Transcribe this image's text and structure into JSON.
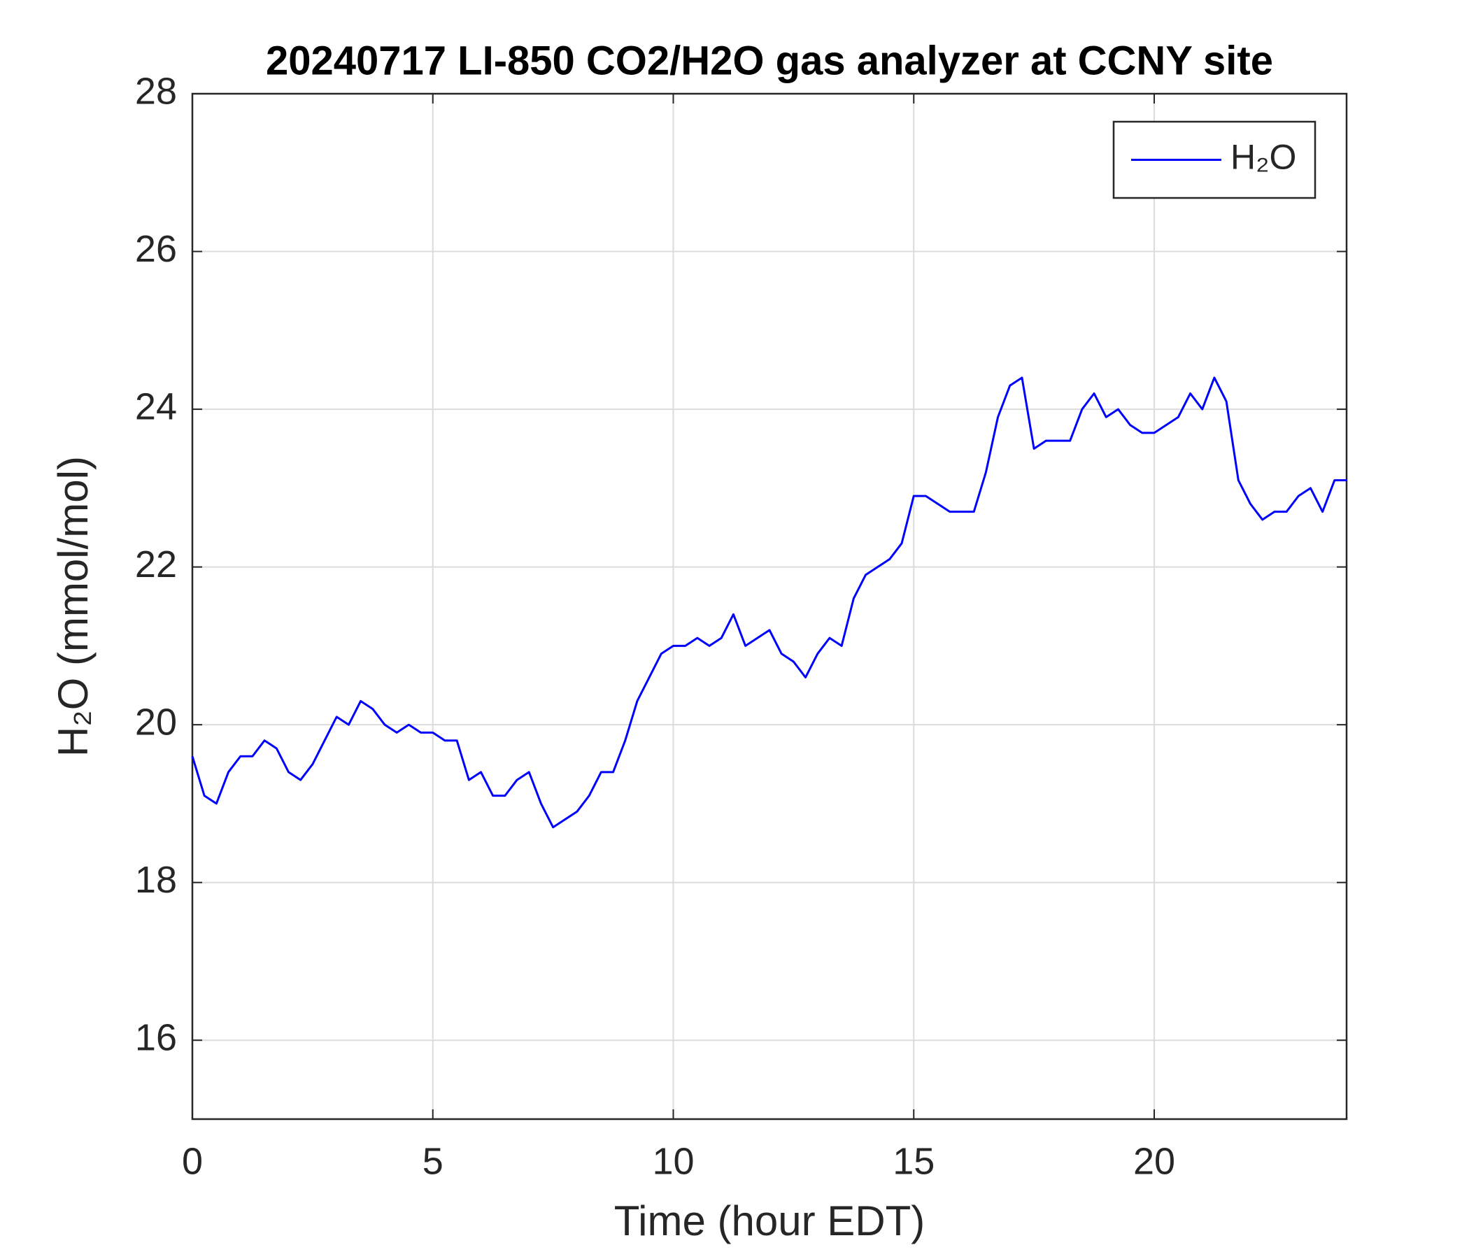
{
  "chart_data": {
    "type": "line",
    "title": "20240717 LI-850 CO2/H2O gas analyzer at CCNY site",
    "xlabel": "Time (hour EDT)",
    "ylabel": "H₂O (mmol/mol)",
    "x": [
      0,
      0.25,
      0.5,
      0.75,
      1,
      1.25,
      1.5,
      1.75,
      2,
      2.25,
      2.5,
      2.75,
      3,
      3.25,
      3.5,
      3.75,
      4,
      4.25,
      4.5,
      4.75,
      5,
      5.25,
      5.5,
      5.75,
      6,
      6.25,
      6.5,
      6.75,
      7,
      7.25,
      7.5,
      7.75,
      8,
      8.25,
      8.5,
      8.75,
      9,
      9.25,
      9.5,
      9.75,
      10,
      10.25,
      10.5,
      10.75,
      11,
      11.25,
      11.5,
      11.75,
      12,
      12.25,
      12.5,
      12.75,
      13,
      13.25,
      13.5,
      13.75,
      14,
      14.25,
      14.5,
      14.75,
      15,
      15.25,
      15.5,
      15.75,
      16,
      16.25,
      16.5,
      16.75,
      17,
      17.25,
      17.5,
      17.75,
      18,
      18.25,
      18.5,
      18.75,
      19,
      19.25,
      19.5,
      19.75,
      20,
      20.25,
      20.5,
      20.75,
      21,
      21.25,
      21.5,
      21.75,
      22,
      22.25,
      22.5,
      22.75,
      23,
      23.25,
      23.5,
      23.75,
      24
    ],
    "series": [
      {
        "name": "H₂O",
        "color": "#0000ff",
        "values": [
          19.6,
          19.1,
          19.0,
          19.4,
          19.6,
          19.6,
          19.8,
          19.7,
          19.4,
          19.3,
          19.5,
          19.8,
          20.1,
          20.0,
          20.3,
          20.2,
          20.0,
          19.9,
          20.0,
          19.9,
          19.9,
          19.8,
          19.8,
          19.3,
          19.4,
          19.1,
          19.1,
          19.3,
          19.4,
          19.0,
          18.7,
          18.8,
          18.9,
          19.1,
          19.4,
          19.4,
          19.8,
          20.3,
          20.6,
          20.9,
          21.0,
          21.0,
          21.1,
          21.0,
          21.1,
          21.4,
          21.0,
          21.1,
          21.2,
          20.9,
          20.8,
          20.6,
          20.9,
          21.1,
          21.0,
          21.6,
          21.9,
          22.0,
          22.1,
          22.3,
          22.9,
          22.9,
          22.8,
          22.7,
          22.7,
          22.7,
          23.2,
          23.9,
          24.3,
          24.4,
          23.5,
          23.6,
          23.6,
          23.6,
          24.0,
          24.2,
          23.9,
          24.0,
          23.8,
          23.7,
          23.7,
          23.8,
          23.9,
          24.2,
          24.0,
          24.4,
          24.1,
          23.1,
          22.8,
          22.6,
          22.7,
          22.7,
          22.9,
          23.0,
          22.7,
          23.1,
          23.1
        ]
      }
    ],
    "xlim": [
      0,
      24
    ],
    "xticks": [
      0,
      5,
      10,
      15,
      20
    ],
    "ylim": [
      15,
      28
    ],
    "yticks": [
      16,
      18,
      20,
      22,
      24,
      26,
      28
    ],
    "grid": true,
    "legend": "top-right"
  }
}
